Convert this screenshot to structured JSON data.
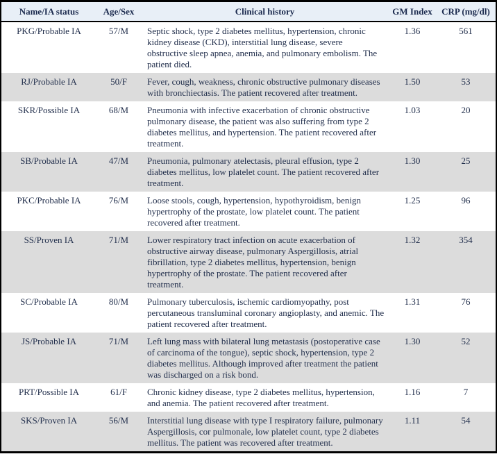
{
  "colors": {
    "header_bg": "#e8eff7",
    "row_alt_bg": "#dcdcdc",
    "row_bg": "#ffffff",
    "text": "#23304d",
    "border": "#000000"
  },
  "table": {
    "columns": [
      {
        "key": "name",
        "label": "Name/IA status"
      },
      {
        "key": "age_sex",
        "label": "Age/Sex"
      },
      {
        "key": "history",
        "label": "Clinical history"
      },
      {
        "key": "gm",
        "label": "GM Index"
      },
      {
        "key": "crp",
        "label": "CRP (mg/dl)"
      }
    ],
    "rows": [
      {
        "name": "PKG/Probable IA",
        "age_sex": "57/M",
        "history": "Septic shock, type 2 diabetes mellitus, hypertension, chronic kidney disease (CKD), interstitial lung disease, severe obstructive sleep apnea, anemia, and pulmonary embolism. The patient died.",
        "gm": "1.36",
        "crp": "561"
      },
      {
        "name": "RJ/Probable IA",
        "age_sex": "50/F",
        "history": "Fever, cough, weakness, chronic obstructive pulmonary diseases with bronchiectasis. The patient recovered after treatment.",
        "gm": "1.50",
        "crp": "53"
      },
      {
        "name": "SKR/Possible IA",
        "age_sex": "68/M",
        "history": "Pneumonia with infective exacerbation of chronic obstructive pulmonary disease, the patient was also suffering from type 2 diabetes mellitus, and hypertension. The patient recovered after treatment.",
        "gm": "1.03",
        "crp": "20"
      },
      {
        "name": "SB/Probable IA",
        "age_sex": "47/M",
        "history": "Pneumonia, pulmonary atelectasis, pleural effusion, type 2 diabetes mellitus, low platelet count. The patient recovered after treatment.",
        "gm": "1.30",
        "crp": "25"
      },
      {
        "name": "PKC/Probable IA",
        "age_sex": "76/M",
        "history": "Loose stools, cough, hypertension, hypothyroidism, benign hypertrophy of the prostate, low platelet count. The patient recovered after treatment.",
        "gm": "1.25",
        "crp": "96"
      },
      {
        "name": "SS/Proven IA",
        "age_sex": "71/M",
        "history": "Lower respiratory tract infection on acute exacerbation of obstructive airway disease, pulmonary Aspergillosis, atrial fibrillation, type 2 diabetes mellitus, hypertension, benign hypertrophy of the prostate. The patient recovered after treatment.",
        "gm": "1.32",
        "crp": "354"
      },
      {
        "name": "SC/Probable IA",
        "age_sex": "80/M",
        "history": "Pulmonary tuberculosis, ischemic cardiomyopathy, post percutaneous transluminal coronary angioplasty, and anemic. The patient recovered after treatment.",
        "gm": "1.31",
        "crp": "76"
      },
      {
        "name": "JS/Probable IA",
        "age_sex": "71/M",
        "history": "Left lung mass with bilateral lung metastasis (postoperative case of carcinoma of the tongue), septic shock, hypertension, type 2 diabetes mellitus. Although improved after treatment the patient was discharged on a risk bond.",
        "gm": "1.30",
        "crp": "52"
      },
      {
        "name": "PRT/Possible IA",
        "age_sex": "61/F",
        "history": "Chronic kidney disease, type 2 diabetes mellitus, hypertension, and anemia. The patient recovered after treatment.",
        "gm": "1.16",
        "crp": "7"
      },
      {
        "name": "SKS/Proven IA",
        "age_sex": "56/M",
        "history": "Interstitial lung disease with type I respiratory failure, pulmonary Aspergillosis, cor pulmonale, low platelet count, type 2 diabetes mellitus. The patient was recovered after treatment.",
        "gm": "1.11",
        "crp": "54"
      }
    ]
  }
}
